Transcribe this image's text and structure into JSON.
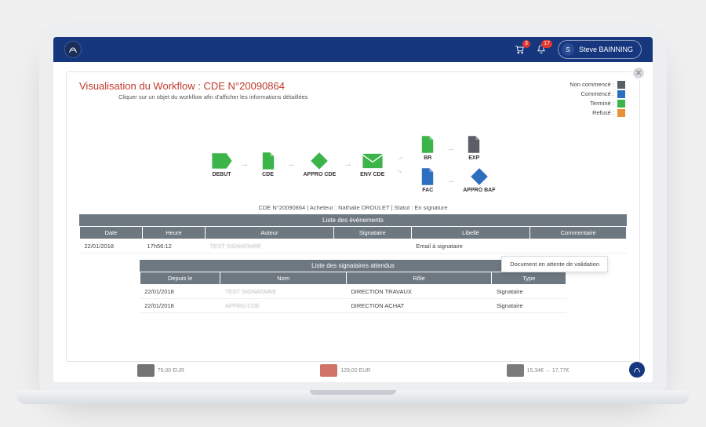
{
  "colors": {
    "brand_navy": "#16377e",
    "title_red": "#c0392b",
    "table_header": "#6d7880",
    "badge_red": "#e0362f"
  },
  "topbar": {
    "logo_initial": "X",
    "cart_badge": "3",
    "bell_badge": "17",
    "user_initial": "S",
    "user_name": "Steve BAINNING"
  },
  "modal": {
    "title_prefix": "Visualisation du Workflow : CDE  N°",
    "title_number": "20090864",
    "subtitle": "Cliquer sur un objet du workflow afin d'afficher les informations détaillées",
    "context_line": "CDE N°20090864 | Acheteur : Nathalie DROULET | Statut : En signature",
    "tooltip": "Document en attente de validation"
  },
  "legend": {
    "items": [
      {
        "label": "Non commencé :",
        "color": "#5a5f66"
      },
      {
        "label": "Commencé :",
        "color": "#2d6fbf"
      },
      {
        "label": "Terminé :",
        "color": "#3bb54a"
      },
      {
        "label": "Refusé :",
        "color": "#e8913a"
      }
    ]
  },
  "workflow": {
    "done_color": "#3bb54a",
    "busy_color": "#2d6fbf",
    "idle_color": "#5a5f66",
    "nodes_main": [
      {
        "id": "debut",
        "label": "DEBUT",
        "shape": "start",
        "color": "#3bb54a"
      },
      {
        "id": "cde",
        "label": "CDE",
        "shape": "doc",
        "color": "#3bb54a"
      },
      {
        "id": "appro",
        "label": "APPRO CDE",
        "shape": "diamond",
        "color": "#3bb54a"
      },
      {
        "id": "envcde",
        "label": "ENV CDE",
        "shape": "mail",
        "color": "#3bb54a"
      }
    ],
    "branch_top": [
      {
        "id": "br",
        "label": "BR",
        "shape": "doc",
        "color": "#3bb54a"
      },
      {
        "id": "exp",
        "label": "EXP",
        "shape": "doc",
        "color": "#5a5f66"
      }
    ],
    "branch_bot": [
      {
        "id": "fac",
        "label": "FAC",
        "shape": "doc",
        "color": "#2d6fbf"
      },
      {
        "id": "ap_baf",
        "label": "APPRO BAF",
        "shape": "diamond",
        "color": "#2d6fbf"
      }
    ]
  },
  "events_table": {
    "caption": "Liste des évènements",
    "columns": [
      "Date",
      "Heure",
      "Auteur",
      "Signataire",
      "Libellé",
      "Commentaire"
    ],
    "rows": [
      [
        "22/01/2018",
        "17h56:12",
        "TEST SIGNATAIRE",
        "",
        "Email à signataire",
        ""
      ]
    ]
  },
  "signatories_table": {
    "caption": "Liste des signataires attendus",
    "columns": [
      "Depuis le",
      "Nom",
      "Rôle",
      "Type"
    ],
    "rows": [
      [
        "22/01/2018",
        "TEST SIGNATAIRE",
        "DIRECTION TRAVAUX",
        "Signataire"
      ],
      [
        "22/01/2018",
        "APPRO CDE",
        "DIRECTION ACHAT",
        "Signataire"
      ]
    ]
  },
  "bg_products": [
    {
      "color": "#3a3a3a",
      "price": "79,00 EUR"
    },
    {
      "color": "#c0392b",
      "price": "129,00 EUR"
    },
    {
      "color": "#444444",
      "price": "15,34€ → 17,77€"
    }
  ]
}
